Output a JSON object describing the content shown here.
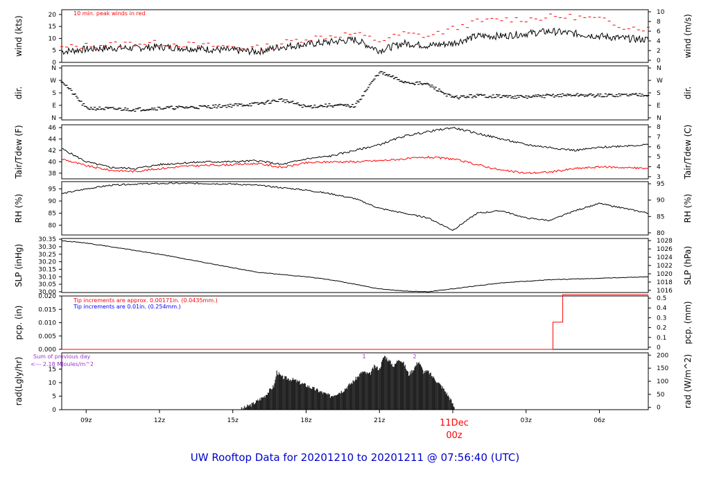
{
  "title": "UW Rooftop Data for 20201210  to  20201211 @ 07:56:40  (UTC)",
  "x_axis": {
    "tick_labels": [
      "09z",
      "12z",
      "15z",
      "18z",
      "21z",
      "11Dec",
      "03z",
      "06z"
    ],
    "day_label": "11Dec",
    "day_sublabel": "00z",
    "range_hours": [
      8.0,
      32.0
    ]
  },
  "colors": {
    "series": "#000000",
    "peak": "#ff0000",
    "annot_red": "#ff0000",
    "annot_blue": "#0000ff",
    "annot_purple": "#9933cc",
    "title": "#0000cc"
  },
  "chart_data": [
    {
      "type": "line",
      "ylabel": "wind (kts)",
      "ylabel_right": "wind (m/s)",
      "annotation": "10 min. peak winds in red",
      "ylim": [
        0,
        22
      ],
      "yticks": [
        "0",
        "5",
        "10",
        "15",
        "20"
      ],
      "yticks_right": [
        "0",
        "2",
        "4",
        "6",
        "8",
        "10"
      ],
      "x": [
        8,
        9,
        10,
        11,
        12,
        13,
        14,
        15,
        16,
        17,
        18,
        19,
        20,
        21,
        22,
        23,
        24,
        25,
        26,
        27,
        28,
        29,
        30,
        31,
        32
      ],
      "series": [
        {
          "values": [
            4.5,
            5.5,
            6,
            6,
            6.5,
            6,
            5.5,
            5,
            4.5,
            6.5,
            7.5,
            8.5,
            9.5,
            5,
            8,
            7,
            8,
            11,
            11,
            12,
            13,
            12,
            11,
            10,
            9.5
          ]
        },
        {
          "values": [
            6,
            7,
            7.5,
            8,
            8,
            7.5,
            7,
            6.5,
            6,
            8,
            10,
            11,
            12,
            9,
            12,
            11,
            14,
            17,
            18,
            18,
            19,
            19,
            18,
            15,
            14
          ]
        }
      ]
    },
    {
      "type": "scatter",
      "ylabel": "dir.",
      "ylabel_right": "dir.",
      "ylim": [
        0,
        360
      ],
      "yticks": [
        "N",
        "E",
        "S",
        "W",
        "N"
      ],
      "yticks_right": [
        "N",
        "E",
        "S",
        "W",
        "N"
      ],
      "x": [
        8,
        9,
        10,
        11,
        12,
        13,
        14,
        15,
        16,
        17,
        18,
        19,
        20,
        21,
        22,
        23,
        24,
        25,
        26,
        27,
        28,
        29,
        30,
        31,
        32
      ],
      "values": [
        270,
        70,
        65,
        60,
        70,
        75,
        80,
        90,
        100,
        130,
        80,
        90,
        85,
        330,
        260,
        240,
        145,
        160,
        155,
        150,
        160,
        165,
        160,
        165,
        170
      ]
    },
    {
      "type": "line",
      "ylabel": "Tair/Tdew (F)",
      "ylabel_right": "Tair/Tdew (C)",
      "ylim": [
        37,
        46.5
      ],
      "yticks": [
        "38",
        "40",
        "42",
        "44",
        "46"
      ],
      "yticks_right": [
        "3",
        "4",
        "5",
        "6",
        "7",
        "8"
      ],
      "x": [
        8,
        9,
        10,
        11,
        12,
        13,
        14,
        15,
        16,
        17,
        18,
        19,
        20,
        21,
        22,
        23,
        24,
        25,
        26,
        27,
        28,
        29,
        30,
        31,
        32
      ],
      "series": [
        {
          "values": [
            42.3,
            40,
            39,
            38.8,
            39.5,
            39.8,
            40,
            40,
            40.2,
            39.5,
            40.5,
            41,
            42,
            43,
            44.5,
            45.3,
            46,
            45,
            44,
            43,
            42.5,
            42,
            42.5,
            42.8,
            43
          ]
        },
        {
          "values": [
            40.5,
            39.3,
            38.5,
            38.3,
            38.8,
            39.2,
            39.4,
            39.5,
            39.7,
            39,
            39.8,
            40,
            40,
            40.2,
            40.5,
            40.8,
            40.5,
            39.5,
            38.5,
            38,
            38.2,
            38.8,
            39.1,
            39,
            38.8
          ]
        }
      ]
    },
    {
      "type": "line",
      "ylabel": "RH (%)",
      "ylabel_right": "RH (%)",
      "ylim": [
        76,
        98
      ],
      "yticks": [
        "80",
        "85",
        "90",
        "95"
      ],
      "yticks_right": [
        "80",
        "85",
        "90",
        "95"
      ],
      "x": [
        8,
        9,
        10,
        11,
        12,
        13,
        14,
        15,
        16,
        17,
        18,
        19,
        20,
        21,
        22,
        23,
        24,
        25,
        26,
        27,
        28,
        29,
        30,
        31,
        32
      ],
      "values": [
        93,
        95,
        96.5,
        97,
        97.2,
        97.3,
        97.2,
        97,
        96.5,
        95.5,
        94.5,
        93,
        91,
        87,
        85,
        83,
        78,
        85,
        86,
        83,
        82,
        86,
        89,
        87,
        85
      ]
    },
    {
      "type": "line",
      "ylabel": "SLP (inHg)",
      "ylabel_right": "SLP (hPa)",
      "ylim": [
        29.995,
        30.355
      ],
      "yticks": [
        "30.00",
        "30.05",
        "30.10",
        "30.15",
        "30.20",
        "30.25",
        "30.30",
        "30.35"
      ],
      "yticks_right": [
        "1016",
        "1018",
        "1020",
        "1022",
        "1024",
        "1026",
        "1028"
      ],
      "x": [
        8,
        9,
        10,
        11,
        12,
        13,
        14,
        15,
        16,
        17,
        18,
        19,
        20,
        21,
        22,
        23,
        24,
        25,
        26,
        27,
        28,
        29,
        30,
        31,
        32
      ],
      "values": [
        30.34,
        30.325,
        30.3,
        30.275,
        30.25,
        30.22,
        30.19,
        30.16,
        30.13,
        30.115,
        30.1,
        30.08,
        30.05,
        30.02,
        30.005,
        30.0,
        30.02,
        30.04,
        30.06,
        30.07,
        30.08,
        30.085,
        30.09,
        30.095,
        30.1
      ]
    },
    {
      "type": "line",
      "ylabel": "pcp. (in)",
      "ylabel_right": "pcp. (mm)",
      "annotation_1": "Tip increments are approx. 0.00171in. (0.0435mm.)",
      "annotation_2": "Tip increments are 0.01in. (0.254mm.)",
      "ylim": [
        0,
        0.02
      ],
      "yticks": [
        "0.000",
        "0.005",
        "0.010",
        "0.015",
        "0.020"
      ],
      "yticks_right": [
        "0",
        "0.1",
        "0.2",
        "0.3",
        "0.4",
        "0.5"
      ],
      "x": [
        8,
        28.1,
        28.1,
        28.5,
        28.5,
        32
      ],
      "values": [
        0,
        0,
        0.0102,
        0.0102,
        0.0205,
        0.0205
      ]
    },
    {
      "type": "area",
      "ylabel": "rad(Lgly/hr)",
      "ylabel_right": "rad (W/m^2)",
      "annotation_sum": "Sum of previous day",
      "annotation_value": "<--- 2.18 MJoules/m^2",
      "marker_1": "1",
      "marker_2": "2",
      "ylim": [
        0,
        21
      ],
      "yticks": [
        "0",
        "5",
        "10",
        "15"
      ],
      "yticks_right": [
        "0",
        "50",
        "100",
        "150",
        "200"
      ],
      "x": [
        15.3,
        15.8,
        16.3,
        16.7,
        16.8,
        17.0,
        17.5,
        18.0,
        18.5,
        19.0,
        19.5,
        20.0,
        20.3,
        20.6,
        20.8,
        21.0,
        21.2,
        21.4,
        21.6,
        21.8,
        22.0,
        22.2,
        22.4,
        22.6,
        22.8,
        23.0,
        23.3,
        23.6,
        23.9,
        24.1
      ],
      "values": [
        0,
        2,
        5,
        9,
        14,
        12,
        11,
        9,
        7,
        5,
        7,
        11,
        14,
        13,
        16,
        15,
        20,
        18,
        16,
        19,
        17,
        13,
        15,
        18,
        14,
        14,
        11,
        8,
        4,
        0
      ]
    }
  ]
}
